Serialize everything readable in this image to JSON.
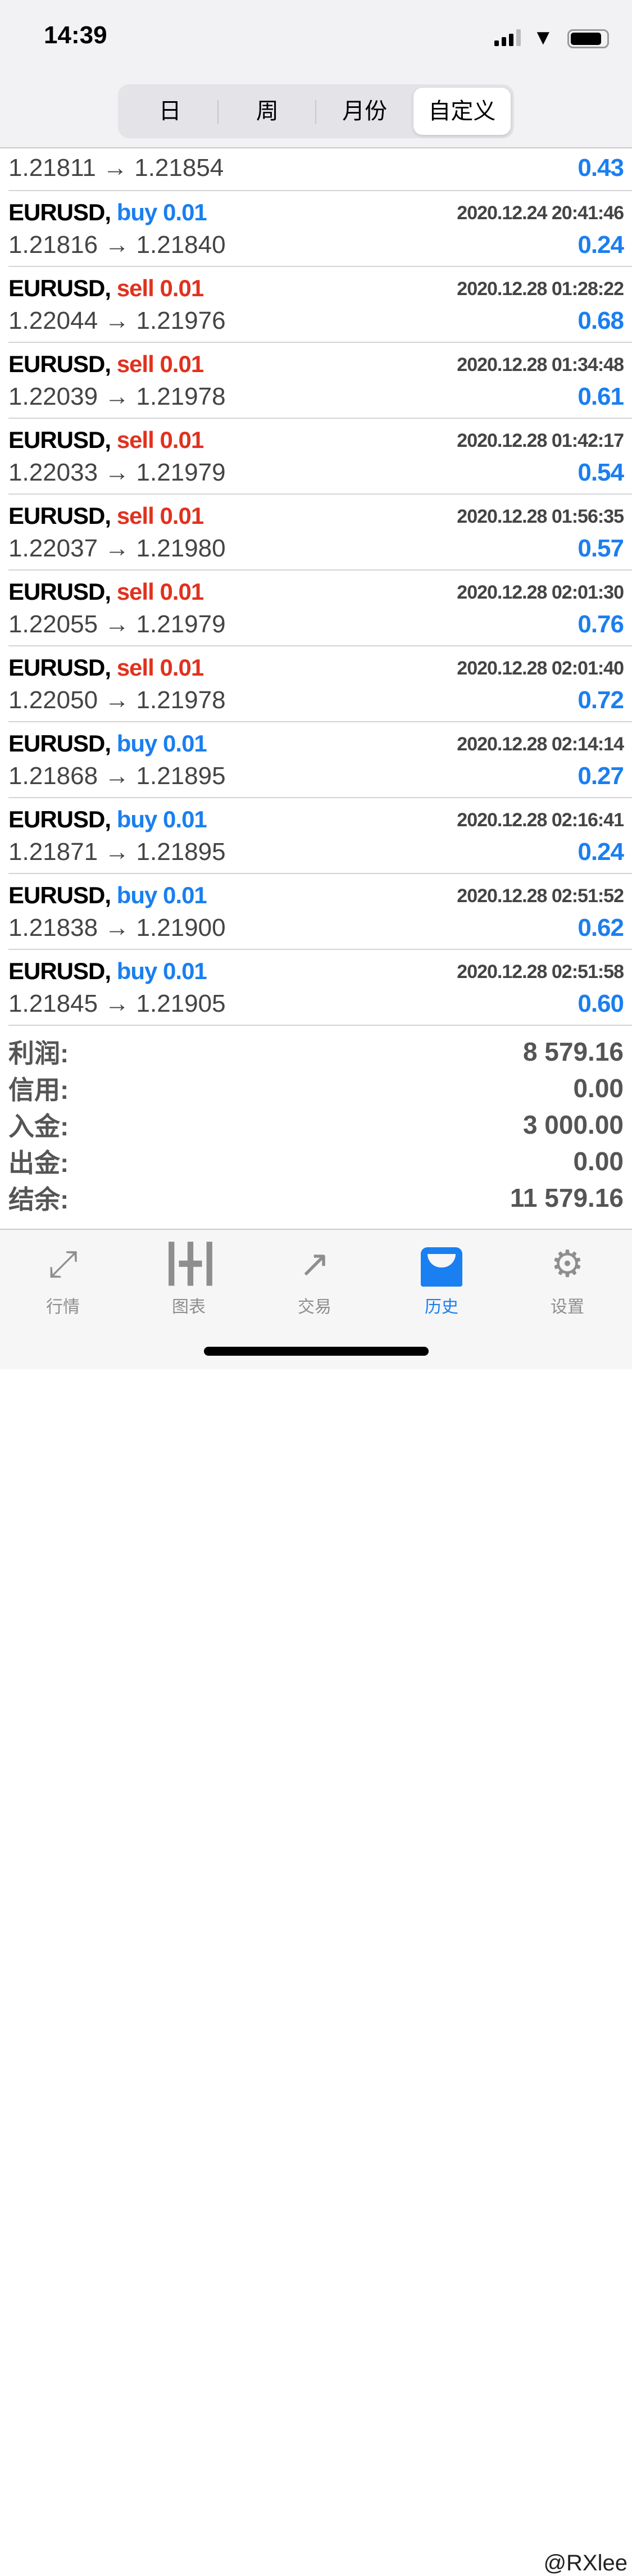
{
  "status": {
    "time": "14:39"
  },
  "segments": [
    {
      "label": "日"
    },
    {
      "label": "周"
    },
    {
      "label": "月份"
    },
    {
      "label": "自定义",
      "active": true
    }
  ],
  "first_row": {
    "prices": "1.21811 → 1.21854",
    "profit": "0.43"
  },
  "trades": [
    {
      "symbol": "EURUSD,",
      "type": "buy",
      "volume": "0.01",
      "date": "2020.12.24 20:41:46",
      "prices": "1.21816 → 1.21840",
      "profit": "0.24"
    },
    {
      "symbol": "EURUSD,",
      "type": "sell",
      "volume": "0.01",
      "date": "2020.12.28 01:28:22",
      "prices": "1.22044 → 1.21976",
      "profit": "0.68"
    },
    {
      "symbol": "EURUSD,",
      "type": "sell",
      "volume": "0.01",
      "date": "2020.12.28 01:34:48",
      "prices": "1.22039 → 1.21978",
      "profit": "0.61"
    },
    {
      "symbol": "EURUSD,",
      "type": "sell",
      "volume": "0.01",
      "date": "2020.12.28 01:42:17",
      "prices": "1.22033 → 1.21979",
      "profit": "0.54"
    },
    {
      "symbol": "EURUSD,",
      "type": "sell",
      "volume": "0.01",
      "date": "2020.12.28 01:56:35",
      "prices": "1.22037 → 1.21980",
      "profit": "0.57"
    },
    {
      "symbol": "EURUSD,",
      "type": "sell",
      "volume": "0.01",
      "date": "2020.12.28 02:01:30",
      "prices": "1.22055 → 1.21979",
      "profit": "0.76"
    },
    {
      "symbol": "EURUSD,",
      "type": "sell",
      "volume": "0.01",
      "date": "2020.12.28 02:01:40",
      "prices": "1.22050 → 1.21978",
      "profit": "0.72"
    },
    {
      "symbol": "EURUSD,",
      "type": "buy",
      "volume": "0.01",
      "date": "2020.12.28 02:14:14",
      "prices": "1.21868 → 1.21895",
      "profit": "0.27"
    },
    {
      "symbol": "EURUSD,",
      "type": "buy",
      "volume": "0.01",
      "date": "2020.12.28 02:16:41",
      "prices": "1.21871 → 1.21895",
      "profit": "0.24"
    },
    {
      "symbol": "EURUSD,",
      "type": "buy",
      "volume": "0.01",
      "date": "2020.12.28 02:51:52",
      "prices": "1.21838 → 1.21900",
      "profit": "0.62"
    },
    {
      "symbol": "EURUSD,",
      "type": "buy",
      "volume": "0.01",
      "date": "2020.12.28 02:51:58",
      "prices": "1.21845 → 1.21905",
      "profit": "0.60"
    }
  ],
  "summary": [
    {
      "label": "利润:",
      "value": "8 579.16"
    },
    {
      "label": "信用:",
      "value": "0.00"
    },
    {
      "label": "入金:",
      "value": "3 000.00"
    },
    {
      "label": "出金:",
      "value": "0.00"
    },
    {
      "label": "结余:",
      "value": "11 579.16"
    }
  ],
  "tabs": [
    {
      "label": "行情",
      "icon": "quotes-arrows-icon"
    },
    {
      "label": "图表",
      "icon": "candlestick-chart-icon"
    },
    {
      "label": "交易",
      "icon": "trade-trend-icon"
    },
    {
      "label": "历史",
      "icon": "history-inbox-icon",
      "active": true
    },
    {
      "label": "设置",
      "icon": "gear-icon"
    }
  ],
  "watermark": "@RXlee",
  "colors": {
    "buy": "#1a7ff0",
    "sell": "#e0321f",
    "profit": "#1a7ff0",
    "active_tab": "#1a7ff0"
  }
}
